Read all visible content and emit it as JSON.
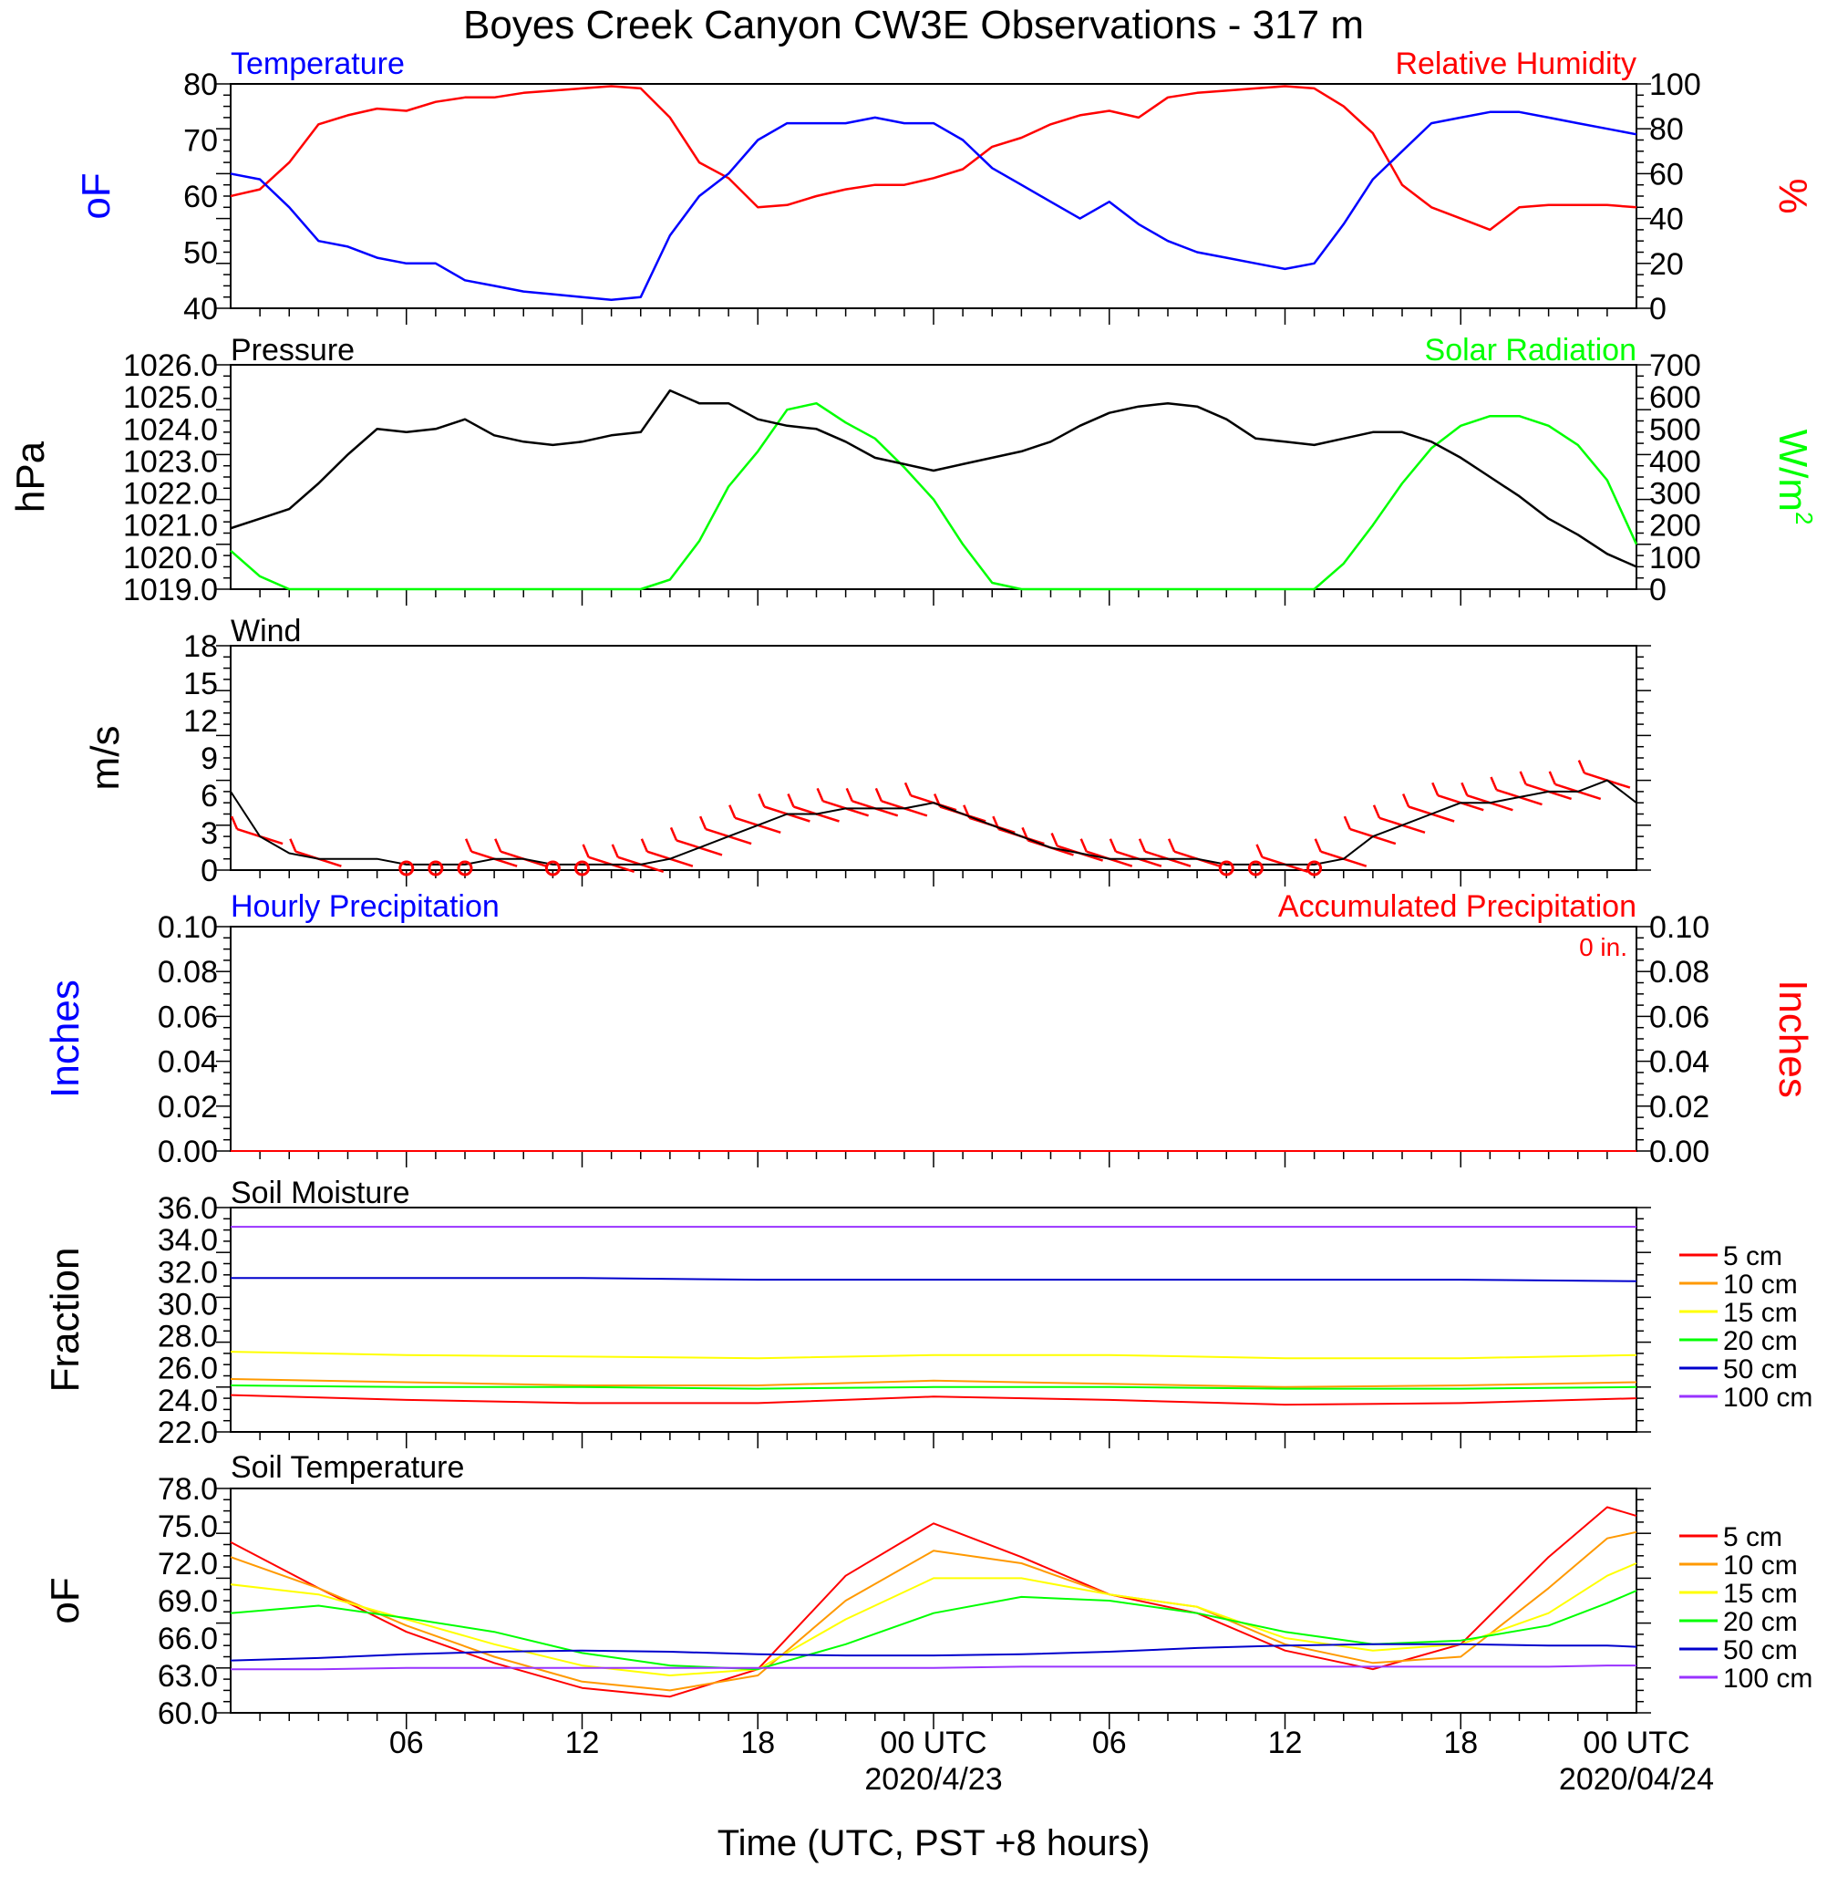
{
  "title": "Boyes Creek Canyon CW3E Observations - 317 m",
  "x_axis": {
    "title": "Time (UTC, PST +8 hours)",
    "range_hours": [
      0,
      48
    ],
    "tick_hours": [
      6,
      12,
      18,
      24,
      30,
      36,
      42,
      48
    ],
    "tick_labels": [
      "06",
      "12",
      "18",
      "00 UTC",
      "06",
      "12",
      "18",
      "00 UTC"
    ],
    "date_labels": [
      {
        "hour": 24,
        "text": "2020/4/23"
      },
      {
        "hour": 48,
        "text": "2020/04/24"
      }
    ]
  },
  "colors": {
    "temperature": "#0000ff",
    "humidity": "#ff0000",
    "pressure": "#000000",
    "solar": "#00ff00",
    "wind": "#000000",
    "barb": "#ff0000",
    "hourly_precip": "#0000ff",
    "accum_precip": "#ff0000",
    "depths": [
      "#ff0000",
      "#ff9900",
      "#ffff00",
      "#00ff00",
      "#0000cc",
      "#9933ff"
    ]
  },
  "legend_depths": [
    "5 cm",
    "10 cm",
    "15 cm",
    "20 cm",
    "50 cm",
    "100 cm"
  ],
  "panels": {
    "temp_rh": {
      "left_title": "Temperature",
      "right_title": "Relative Humidity",
      "left_unit": "oF",
      "right_unit": "%",
      "left_ticks": [
        "80",
        "70",
        "60",
        "50",
        "40"
      ],
      "right_ticks": [
        "100",
        "80",
        "60",
        "40",
        "20",
        "0"
      ]
    },
    "pressure_solar": {
      "left_title": "Pressure",
      "right_title": "Solar Radiation",
      "left_unit": "hPa",
      "right_unit": "W/m",
      "right_unit_sup": "2",
      "left_ticks": [
        "1026.0",
        "1025.0",
        "1024.0",
        "1023.0",
        "1022.0",
        "1021.0",
        "1020.0",
        "1019.0"
      ],
      "right_ticks": [
        "700",
        "600",
        "500",
        "400",
        "300",
        "200",
        "100",
        "0"
      ]
    },
    "wind": {
      "left_title": "Wind",
      "left_unit": "m/s",
      "left_ticks": [
        "18",
        "15",
        "12",
        "9",
        "6",
        "3",
        "0"
      ]
    },
    "precip": {
      "left_title": "Hourly Precipitation",
      "right_title": "Accumulated Precipitation",
      "total_label": "0 in.",
      "left_unit": "Inches",
      "right_unit": "Inches",
      "left_ticks": [
        "0.10",
        "0.08",
        "0.06",
        "0.04",
        "0.02",
        "0.00"
      ],
      "right_ticks": [
        "0.10",
        "0.08",
        "0.06",
        "0.04",
        "0.02",
        "0.00"
      ]
    },
    "soil_moisture": {
      "left_title": "Soil Moisture",
      "left_unit": "Fraction",
      "left_ticks": [
        "36.0",
        "34.0",
        "32.0",
        "30.0",
        "28.0",
        "26.0",
        "24.0",
        "22.0"
      ]
    },
    "soil_temp": {
      "left_title": "Soil Temperature",
      "left_unit": "oF",
      "left_ticks": [
        "78.0",
        "75.0",
        "72.0",
        "69.0",
        "66.0",
        "63.0",
        "60.0"
      ]
    }
  },
  "chart_data": [
    {
      "type": "line",
      "x_units": "hours since 2020-04-22 00 UTC",
      "series": [
        {
          "name": "Temperature",
          "axis": "left",
          "x": [
            0,
            1,
            2,
            3,
            4,
            5,
            6,
            7,
            8,
            9,
            10,
            11,
            12,
            13,
            14,
            15,
            16,
            17,
            18,
            19,
            20,
            21,
            22,
            23,
            24,
            25,
            26,
            27,
            28,
            29,
            30,
            31,
            32,
            33,
            34,
            35,
            36,
            37,
            38,
            39,
            40,
            41,
            42,
            43,
            44,
            45,
            46,
            47,
            48
          ],
          "y": [
            64,
            63,
            58,
            52,
            51,
            49,
            48,
            48,
            45,
            44,
            43,
            42.5,
            42,
            41.5,
            42,
            53,
            60,
            64,
            70,
            73,
            73,
            73,
            74,
            73,
            73,
            70,
            65,
            62,
            59,
            56,
            59,
            55,
            52,
            50,
            49,
            48,
            47,
            48,
            55,
            63,
            68,
            73,
            74,
            75,
            75,
            74,
            73,
            72,
            71
          ]
        },
        {
          "name": "Relative Humidity",
          "axis": "right",
          "x": [
            0,
            1,
            2,
            3,
            4,
            5,
            6,
            7,
            8,
            9,
            10,
            11,
            12,
            13,
            14,
            15,
            16,
            17,
            18,
            19,
            20,
            21,
            22,
            23,
            24,
            25,
            26,
            27,
            28,
            29,
            30,
            31,
            32,
            33,
            34,
            35,
            36,
            37,
            38,
            39,
            40,
            41,
            42,
            43,
            44,
            45,
            46,
            47,
            48
          ],
          "y": [
            50,
            53,
            65,
            82,
            86,
            89,
            88,
            92,
            94,
            94,
            96,
            97,
            98,
            99,
            98,
            85,
            65,
            58,
            45,
            46,
            50,
            53,
            55,
            55,
            58,
            62,
            72,
            76,
            82,
            86,
            88,
            85,
            94,
            96,
            97,
            98,
            99,
            98,
            90,
            78,
            55,
            45,
            40,
            35,
            45,
            46,
            46,
            46,
            45
          ]
        }
      ],
      "left_ylim": [
        40,
        80
      ],
      "right_ylim": [
        0,
        100
      ]
    },
    {
      "type": "line",
      "x_units": "hours since 2020-04-22 00 UTC",
      "series": [
        {
          "name": "Pressure",
          "axis": "left",
          "x": [
            0,
            1,
            2,
            3,
            4,
            5,
            6,
            7,
            8,
            9,
            10,
            11,
            12,
            13,
            14,
            15,
            16,
            17,
            18,
            19,
            20,
            21,
            22,
            23,
            24,
            25,
            26,
            27,
            28,
            29,
            30,
            31,
            32,
            33,
            34,
            35,
            36,
            37,
            38,
            39,
            40,
            41,
            42,
            43,
            44,
            45,
            46,
            47,
            48
          ],
          "y": [
            1020.9,
            1021.2,
            1021.5,
            1022.3,
            1023.2,
            1024.0,
            1023.9,
            1024.0,
            1024.3,
            1023.8,
            1023.6,
            1023.5,
            1023.6,
            1023.8,
            1023.9,
            1025.2,
            1024.8,
            1024.8,
            1024.3,
            1024.1,
            1024.0,
            1023.6,
            1023.1,
            1022.9,
            1022.7,
            1022.9,
            1023.1,
            1023.3,
            1023.6,
            1024.1,
            1024.5,
            1024.7,
            1024.8,
            1024.7,
            1024.3,
            1023.7,
            1023.6,
            1023.5,
            1023.7,
            1023.9,
            1023.9,
            1023.6,
            1023.1,
            1022.5,
            1021.9,
            1021.2,
            1020.7,
            1020.1,
            1019.7
          ]
        },
        {
          "name": "Solar Radiation",
          "axis": "right",
          "x": [
            0,
            1,
            2,
            3,
            4,
            5,
            6,
            7,
            8,
            9,
            10,
            11,
            12,
            13,
            14,
            15,
            16,
            17,
            18,
            19,
            20,
            21,
            22,
            23,
            24,
            25,
            26,
            27,
            28,
            29,
            30,
            31,
            32,
            33,
            34,
            35,
            36,
            37,
            38,
            39,
            40,
            41,
            42,
            43,
            44,
            45,
            46,
            47,
            48
          ],
          "y": [
            120,
            40,
            0,
            0,
            0,
            0,
            0,
            0,
            0,
            0,
            0,
            0,
            0,
            0,
            0,
            30,
            150,
            320,
            430,
            560,
            580,
            520,
            470,
            380,
            280,
            140,
            20,
            0,
            0,
            0,
            0,
            0,
            0,
            0,
            0,
            0,
            0,
            0,
            80,
            200,
            330,
            440,
            510,
            540,
            540,
            510,
            450,
            340,
            140
          ]
        }
      ],
      "left_ylim": [
        1019.0,
        1026.0
      ],
      "right_ylim": [
        0,
        700
      ]
    },
    {
      "type": "line",
      "x_units": "hours since 2020-04-22 00 UTC",
      "series": [
        {
          "name": "Wind",
          "axis": "left",
          "x": [
            0,
            1,
            2,
            3,
            4,
            5,
            6,
            7,
            8,
            9,
            10,
            11,
            12,
            13,
            14,
            15,
            16,
            17,
            18,
            19,
            20,
            21,
            22,
            23,
            24,
            25,
            26,
            27,
            28,
            29,
            30,
            31,
            32,
            33,
            34,
            35,
            36,
            37,
            38,
            39,
            40,
            41,
            42,
            43,
            44,
            45,
            46,
            47,
            48
          ],
          "y": [
            7,
            3,
            1.5,
            1,
            1,
            1,
            0.5,
            0.5,
            0.5,
            1,
            1,
            0.5,
            0.5,
            0.5,
            0.5,
            1,
            2,
            3,
            4,
            5,
            5,
            5.5,
            5.5,
            5.5,
            6,
            5,
            4,
            3,
            2,
            1.5,
            1,
            1,
            1,
            1,
            0.5,
            0.5,
            0.5,
            0.5,
            1,
            3,
            4,
            5,
            6,
            6,
            6.5,
            7,
            7,
            8,
            6
          ]
        }
      ],
      "ylim": [
        0,
        20
      ],
      "barb_hours": [
        1,
        3,
        6,
        7,
        8,
        9,
        10,
        11,
        12,
        13,
        14,
        15,
        16,
        17,
        18,
        19,
        20,
        21,
        22,
        23,
        24,
        25,
        26,
        27,
        28,
        29,
        30,
        31,
        32,
        33,
        34,
        35,
        36,
        37,
        38,
        39,
        40,
        41,
        42,
        43,
        44,
        45,
        46,
        47
      ],
      "calm_hours": [
        6,
        7,
        8,
        11,
        12,
        34,
        35,
        37
      ]
    },
    {
      "type": "line",
      "x_units": "hours since 2020-04-22 00 UTC",
      "series": [
        {
          "name": "Hourly Precipitation",
          "axis": "left",
          "x": [
            0,
            48
          ],
          "y": [
            0,
            0
          ]
        },
        {
          "name": "Accumulated Precipitation",
          "axis": "right",
          "x": [
            0,
            48
          ],
          "y": [
            0,
            0
          ]
        }
      ],
      "left_ylim": [
        0,
        0.1
      ],
      "right_ylim": [
        0,
        0.1
      ]
    },
    {
      "type": "line",
      "x_units": "hours since 2020-04-22 00 UTC",
      "x": [
        0,
        6,
        12,
        18,
        24,
        30,
        36,
        42,
        48
      ],
      "series": [
        {
          "name": "5 cm",
          "y": [
            24.3,
            24.0,
            23.8,
            23.8,
            24.2,
            24.0,
            23.7,
            23.8,
            24.1
          ]
        },
        {
          "name": "10 cm",
          "y": [
            25.3,
            25.1,
            24.9,
            24.9,
            25.2,
            25.0,
            24.8,
            24.9,
            25.1
          ]
        },
        {
          "name": "15 cm",
          "y": [
            27.0,
            26.8,
            26.7,
            26.6,
            26.8,
            26.8,
            26.6,
            26.6,
            26.8
          ]
        },
        {
          "name": "20 cm",
          "y": [
            24.9,
            24.8,
            24.8,
            24.7,
            24.8,
            24.8,
            24.7,
            24.7,
            24.8
          ]
        },
        {
          "name": "50 cm",
          "y": [
            31.6,
            31.6,
            31.6,
            31.5,
            31.5,
            31.5,
            31.5,
            31.5,
            31.4
          ]
        },
        {
          "name": "100 cm",
          "y": [
            34.8,
            34.8,
            34.8,
            34.8,
            34.8,
            34.8,
            34.8,
            34.8,
            34.8
          ]
        }
      ],
      "ylim": [
        22,
        36
      ]
    },
    {
      "type": "line",
      "x_units": "hours since 2020-04-22 00 UTC",
      "x": [
        0,
        3,
        6,
        9,
        12,
        15,
        18,
        21,
        24,
        27,
        30,
        33,
        36,
        39,
        42,
        45,
        47,
        48
      ],
      "series": [
        {
          "name": "5 cm",
          "y": [
            73.7,
            70,
            66.5,
            64,
            62,
            61.3,
            63.5,
            71,
            75.2,
            72.5,
            69.5,
            68,
            65,
            63.5,
            65.5,
            72.5,
            76.5,
            75.8
          ]
        },
        {
          "name": "10 cm",
          "y": [
            72.5,
            70,
            67,
            64.5,
            62.5,
            61.8,
            63,
            69,
            73,
            72,
            69.5,
            68.5,
            65.5,
            64,
            64.5,
            70,
            74,
            74.5
          ]
        },
        {
          "name": "15 cm",
          "y": [
            70.3,
            69.5,
            67.5,
            65.5,
            63.8,
            63,
            63.5,
            67.5,
            70.8,
            70.8,
            69.5,
            68.5,
            66,
            65,
            65.5,
            68,
            71,
            72
          ]
        },
        {
          "name": "20 cm",
          "y": [
            68,
            68.6,
            67.6,
            66.5,
            64.8,
            63.8,
            63.5,
            65.5,
            68,
            69.3,
            69,
            68,
            66.5,
            65.5,
            65.8,
            67,
            68.8,
            69.8
          ]
        },
        {
          "name": "50 cm",
          "y": [
            64.2,
            64.4,
            64.7,
            64.9,
            65,
            64.9,
            64.7,
            64.6,
            64.6,
            64.7,
            64.9,
            65.2,
            65.4,
            65.5,
            65.5,
            65.4,
            65.4,
            65.3
          ]
        },
        {
          "name": "100 cm",
          "y": [
            63.5,
            63.5,
            63.6,
            63.6,
            63.6,
            63.6,
            63.6,
            63.6,
            63.6,
            63.7,
            63.7,
            63.7,
            63.7,
            63.7,
            63.7,
            63.7,
            63.8,
            63.8
          ]
        }
      ],
      "ylim": [
        60,
        78
      ]
    }
  ]
}
